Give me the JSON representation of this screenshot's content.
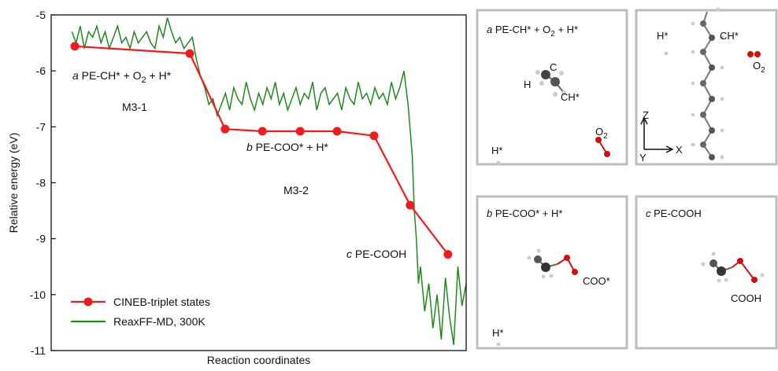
{
  "chart_data": {
    "type": "line",
    "y_label": "Relative energy (eV)",
    "x_label": "Reaction coordinates",
    "ylim": [
      -11,
      -5
    ],
    "yticks": [
      -11,
      -10,
      -9,
      -8,
      -7,
      -6,
      -5
    ],
    "xlim": [
      0,
      100
    ],
    "legend": "lower left",
    "series": [
      {
        "name": "CINEB-triplet states",
        "color": "#ee1c1c",
        "markers": true,
        "x": [
          5.7,
          33.4,
          41.9,
          50.9,
          60.0,
          68.9,
          77.8,
          86.5,
          95.6
        ],
        "values": [
          -5.56,
          -5.69,
          -7.04,
          -7.08,
          -7.08,
          -7.08,
          -7.16,
          -8.4,
          -9.28
        ]
      },
      {
        "name": "ReaxFF-MD, 300K",
        "color": "#1e8a1e",
        "markers": false,
        "x": [
          5,
          6,
          7,
          8,
          9,
          10,
          11,
          12,
          13,
          14,
          15,
          16,
          17,
          18,
          19,
          20,
          21,
          22,
          23,
          24,
          25,
          26,
          27,
          28,
          29,
          30,
          31,
          32,
          33,
          34,
          35,
          36,
          37,
          38,
          39,
          40,
          41,
          42,
          43,
          44,
          45,
          46,
          47,
          48,
          49,
          50,
          51,
          52,
          53,
          54,
          55,
          56,
          57,
          58,
          59,
          60,
          61,
          62,
          63,
          64,
          65,
          66,
          67,
          68,
          69,
          70,
          71,
          72,
          73,
          74,
          75,
          76,
          77,
          78,
          79,
          80,
          81,
          82,
          83,
          84,
          85,
          86,
          87,
          87.5,
          88,
          88.5,
          89,
          90,
          91,
          92,
          93,
          94,
          95,
          96,
          97,
          98,
          99,
          100
        ],
        "values": [
          -5.3,
          -5.5,
          -5.2,
          -5.6,
          -5.3,
          -5.4,
          -5.2,
          -5.5,
          -5.3,
          -5.6,
          -5.4,
          -5.2,
          -5.5,
          -5.4,
          -5.6,
          -5.3,
          -5.5,
          -5.4,
          -5.3,
          -5.5,
          -5.6,
          -5.2,
          -5.4,
          -5.05,
          -5.3,
          -5.5,
          -5.4,
          -5.6,
          -5.5,
          -5.4,
          -5.8,
          -6.1,
          -6.3,
          -6.6,
          -6.5,
          -6.8,
          -6.6,
          -6.4,
          -6.7,
          -6.3,
          -6.5,
          -6.6,
          -6.2,
          -6.5,
          -6.7,
          -6.4,
          -6.6,
          -6.3,
          -6.5,
          -6.2,
          -6.6,
          -6.4,
          -6.7,
          -6.5,
          -6.3,
          -6.6,
          -6.4,
          -6.5,
          -6.2,
          -6.7,
          -6.4,
          -6.3,
          -6.6,
          -6.5,
          -6.4,
          -6.7,
          -6.3,
          -6.5,
          -6.6,
          -6.2,
          -6.5,
          -6.4,
          -6.6,
          -6.3,
          -6.5,
          -6.4,
          -6.6,
          -6.2,
          -6.5,
          -6.3,
          -6.0,
          -6.6,
          -7.5,
          -8.5,
          -9.0,
          -9.8,
          -9.5,
          -10.3,
          -9.8,
          -10.6,
          -10.0,
          -10.8,
          -9.7,
          -10.4,
          -10.9,
          -9.5,
          -10.2,
          -9.8
        ]
      }
    ],
    "annotations": [
      {
        "parts": [
          {
            "text": "a",
            "italic": true
          },
          {
            "text": " PE-CH* + O"
          },
          {
            "text": "2",
            "sub": true
          },
          {
            "text": " + H*"
          }
        ]
      },
      {
        "parts": [
          {
            "text": "M3-1"
          }
        ],
        "color": "#1ea0e0"
      },
      {
        "parts": [
          {
            "text": "b",
            "italic": true
          },
          {
            "text": " PE-COO* + H*"
          }
        ]
      },
      {
        "parts": [
          {
            "text": "M3-2"
          }
        ],
        "color": "#1ea0e0"
      },
      {
        "parts": [
          {
            "text": "c",
            "italic": true
          },
          {
            "text": " PE-COOH"
          }
        ]
      }
    ]
  },
  "panels": [
    {
      "title": [
        "a",
        " PE-CH* + O",
        "2",
        " + H*"
      ],
      "labels": [
        "H",
        "C",
        "CH*",
        "H*",
        "O",
        "2"
      ]
    },
    {
      "labels": [
        "H*",
        "CH*",
        "O",
        "2",
        "Z",
        "X",
        "Y"
      ]
    },
    {
      "title": [
        "b",
        " PE-COO* + H*"
      ],
      "labels": [
        "COO*",
        "H*"
      ]
    },
    {
      "title": [
        "c",
        " PE-COOH"
      ],
      "labels": [
        "COOH"
      ]
    }
  ]
}
